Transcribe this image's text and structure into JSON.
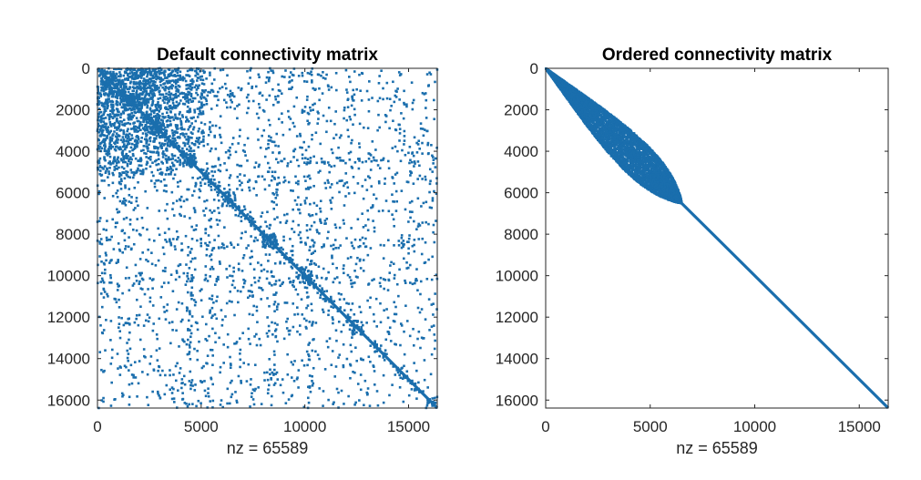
{
  "chart_data": [
    {
      "type": "scatter",
      "title": "Default connectivity matrix",
      "xlabel": "nz = 65589",
      "ylabel": "",
      "xlim": [
        0,
        16384
      ],
      "ylim": [
        16384,
        0
      ],
      "y_reversed": true,
      "xticks": [
        0,
        5000,
        10000,
        15000
      ],
      "yticks": [
        0,
        2000,
        4000,
        6000,
        8000,
        10000,
        12000,
        14000,
        16000
      ],
      "grid": false,
      "color": "#1a6ead",
      "nnz": 65589,
      "structure": "sparsity pattern: strong main diagonal with scattered off-diagonal nonzeros, dense block near the top-left (rows 0-4000, cols 0-5000), denser clusters along the diagonal near 8200"
    },
    {
      "type": "scatter",
      "title": "Ordered connectivity matrix",
      "xlabel": "nz = 65589",
      "ylabel": "",
      "xlim": [
        0,
        16384
      ],
      "ylim": [
        16384,
        0
      ],
      "y_reversed": true,
      "xticks": [
        0,
        5000,
        10000,
        15000
      ],
      "yticks": [
        0,
        2000,
        4000,
        6000,
        8000,
        10000,
        12000,
        14000,
        16000
      ],
      "grid": false,
      "color": "#1a6ead",
      "nnz": 65589,
      "structure": "sparsity pattern: banded lens-shaped block along the diagonal from 0 to about 6500, then a thin diagonal line to 16384"
    }
  ]
}
